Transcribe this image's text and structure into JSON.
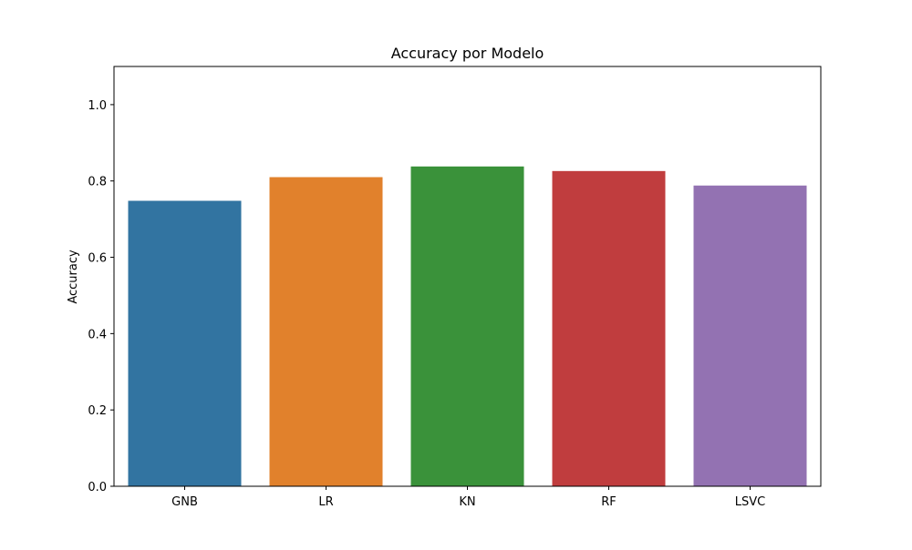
{
  "chart_data": {
    "type": "bar",
    "title": "Accuracy por Modelo",
    "xlabel": "",
    "ylabel": "Accuracy",
    "categories": [
      "GNB",
      "LR",
      "KN",
      "RF",
      "LSVC"
    ],
    "values": [
      0.748,
      0.81,
      0.838,
      0.826,
      0.788
    ],
    "colors": [
      "#3274a1",
      "#e1812c",
      "#3a923a",
      "#c03d3e",
      "#9372b2"
    ],
    "ylim": [
      0,
      1.1
    ],
    "yticks": [
      0.0,
      0.2,
      0.4,
      0.6,
      0.8,
      1.0
    ],
    "ytick_labels": [
      "0.0",
      "0.2",
      "0.4",
      "0.6",
      "0.8",
      "1.0"
    ],
    "grid": false,
    "legend": "none"
  }
}
